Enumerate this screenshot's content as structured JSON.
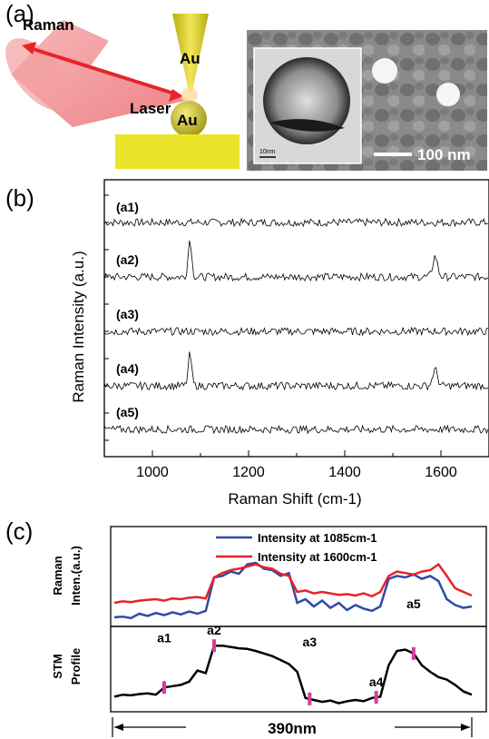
{
  "panel_a": {
    "label": "(a)",
    "raman_label": "Raman",
    "laser_label": "Laser",
    "tip_label": "Au",
    "particle_label": "Au",
    "inset_scale_label": "10nm",
    "scale_bar_label": "100 nm"
  },
  "panel_b": {
    "label": "(b)"
  },
  "panel_c": {
    "label": "(c)",
    "raman_ylabel": [
      "Raman",
      "Inten.(a.u.)"
    ],
    "stm_ylabel": [
      "STM",
      "Profile"
    ],
    "distance_label": "390nm"
  },
  "colors": {
    "blue": "#2f4aa8",
    "red": "#e8232a",
    "magenta": "#d33f9a",
    "gold": "#e8d82a"
  },
  "chart_data": [
    {
      "type": "line",
      "id": "raman-spectra",
      "xlabel": "Raman Shift (cm-1)",
      "ylabel": "Raman Intensity (a.u.)",
      "xlim": [
        900,
        1700
      ],
      "xticks": [
        1000,
        1200,
        1400,
        1600
      ],
      "series": [
        {
          "name": "(a1)",
          "offset": 4.0,
          "noise": 0.1,
          "peaks": []
        },
        {
          "name": "(a2)",
          "offset": 3.0,
          "noise": 0.1,
          "peaks": [
            [
              1078,
              0.7,
              5
            ],
            [
              1588,
              0.38,
              7
            ]
          ]
        },
        {
          "name": "(a3)",
          "offset": 2.0,
          "noise": 0.1,
          "peaks": []
        },
        {
          "name": "(a4)",
          "offset": 1.0,
          "noise": 0.1,
          "peaks": [
            [
              1078,
              0.58,
              5
            ],
            [
              1588,
              0.3,
              7
            ]
          ]
        },
        {
          "name": "(a5)",
          "offset": 0.2,
          "noise": 0.1,
          "peaks": []
        }
      ]
    },
    {
      "type": "line",
      "id": "raman-intensity-profile",
      "ylabel": "Raman Inten.(a.u.)",
      "legend": "top-left",
      "x": [
        0,
        10,
        20,
        30,
        40,
        50,
        60,
        70,
        80,
        90,
        100,
        110,
        120,
        130,
        140,
        150,
        160,
        170,
        180,
        190,
        200,
        210,
        220,
        230,
        240,
        250,
        260,
        270,
        280,
        290,
        300,
        310,
        320,
        330,
        340,
        350,
        360,
        370,
        380,
        390,
        400,
        410,
        420,
        430
      ],
      "series": [
        {
          "name": "Intensity at 1085cm-1",
          "values": [
            0.05,
            0.06,
            0.04,
            0.1,
            0.07,
            0.11,
            0.08,
            0.12,
            0.09,
            0.13,
            0.1,
            0.14,
            0.6,
            0.62,
            0.68,
            0.65,
            0.78,
            0.8,
            0.72,
            0.7,
            0.62,
            0.66,
            0.25,
            0.3,
            0.2,
            0.28,
            0.18,
            0.25,
            0.15,
            0.22,
            0.17,
            0.14,
            0.2,
            0.58,
            0.62,
            0.6,
            0.64,
            0.58,
            0.62,
            0.55,
            0.3,
            0.22,
            0.18,
            0.2
          ]
        },
        {
          "name": "Intensity at 1600cm-1",
          "values": [
            0.25,
            0.27,
            0.26,
            0.28,
            0.29,
            0.3,
            0.28,
            0.31,
            0.3,
            0.32,
            0.33,
            0.31,
            0.6,
            0.66,
            0.7,
            0.72,
            0.75,
            0.78,
            0.74,
            0.72,
            0.65,
            0.62,
            0.4,
            0.42,
            0.38,
            0.4,
            0.38,
            0.36,
            0.37,
            0.35,
            0.38,
            0.34,
            0.4,
            0.62,
            0.68,
            0.66,
            0.64,
            0.68,
            0.7,
            0.78,
            0.62,
            0.45,
            0.4,
            0.35
          ]
        }
      ]
    },
    {
      "type": "line",
      "id": "stm-profile",
      "ylabel": "STM Profile",
      "x": [
        0,
        10,
        20,
        30,
        40,
        50,
        60,
        70,
        80,
        90,
        100,
        110,
        120,
        130,
        140,
        150,
        160,
        170,
        180,
        190,
        200,
        210,
        220,
        230,
        240,
        250,
        260,
        270,
        280,
        290,
        300,
        310,
        320,
        330,
        340,
        350,
        360,
        370,
        380,
        390,
        400,
        410,
        420,
        430
      ],
      "values": [
        0.12,
        0.15,
        0.14,
        0.16,
        0.17,
        0.15,
        0.26,
        0.28,
        0.3,
        0.35,
        0.52,
        0.48,
        0.9,
        0.9,
        0.88,
        0.86,
        0.85,
        0.82,
        0.78,
        0.74,
        0.68,
        0.62,
        0.5,
        0.1,
        0.07,
        0.04,
        0.06,
        0.02,
        0.05,
        0.07,
        0.05,
        0.1,
        0.12,
        0.6,
        0.82,
        0.84,
        0.78,
        0.6,
        0.5,
        0.42,
        0.38,
        0.3,
        0.2,
        0.15
      ],
      "markers": [
        {
          "label": "a1",
          "x": 60
        },
        {
          "label": "a2",
          "x": 120
        },
        {
          "label": "a3",
          "x": 235
        },
        {
          "label": "a4",
          "x": 315
        },
        {
          "label": "a5",
          "x": 360
        }
      ]
    }
  ]
}
